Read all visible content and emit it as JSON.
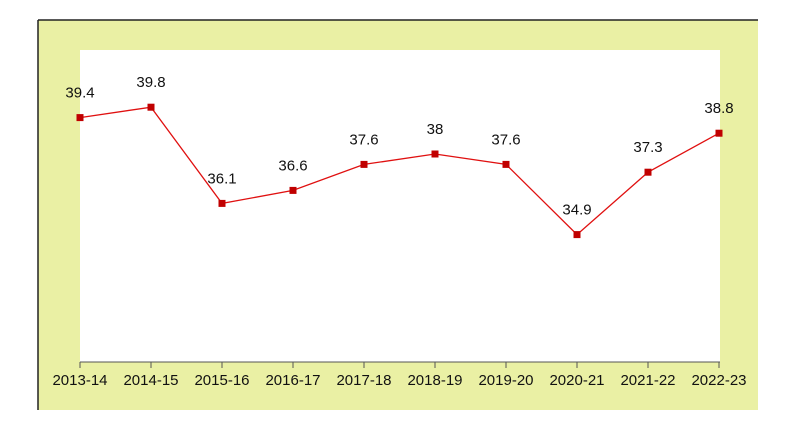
{
  "chart_data": {
    "type": "line",
    "categories": [
      "2013-14",
      "2014-15",
      "2015-16",
      "2016-17",
      "2017-18",
      "2018-19",
      "2019-20",
      "2020-21",
      "2021-22",
      "2022-23"
    ],
    "values": [
      39.4,
      39.8,
      36.1,
      36.6,
      37.6,
      38,
      37.6,
      34.9,
      37.3,
      38.8
    ],
    "color": "#e01010",
    "ylim": [
      30,
      42
    ]
  }
}
